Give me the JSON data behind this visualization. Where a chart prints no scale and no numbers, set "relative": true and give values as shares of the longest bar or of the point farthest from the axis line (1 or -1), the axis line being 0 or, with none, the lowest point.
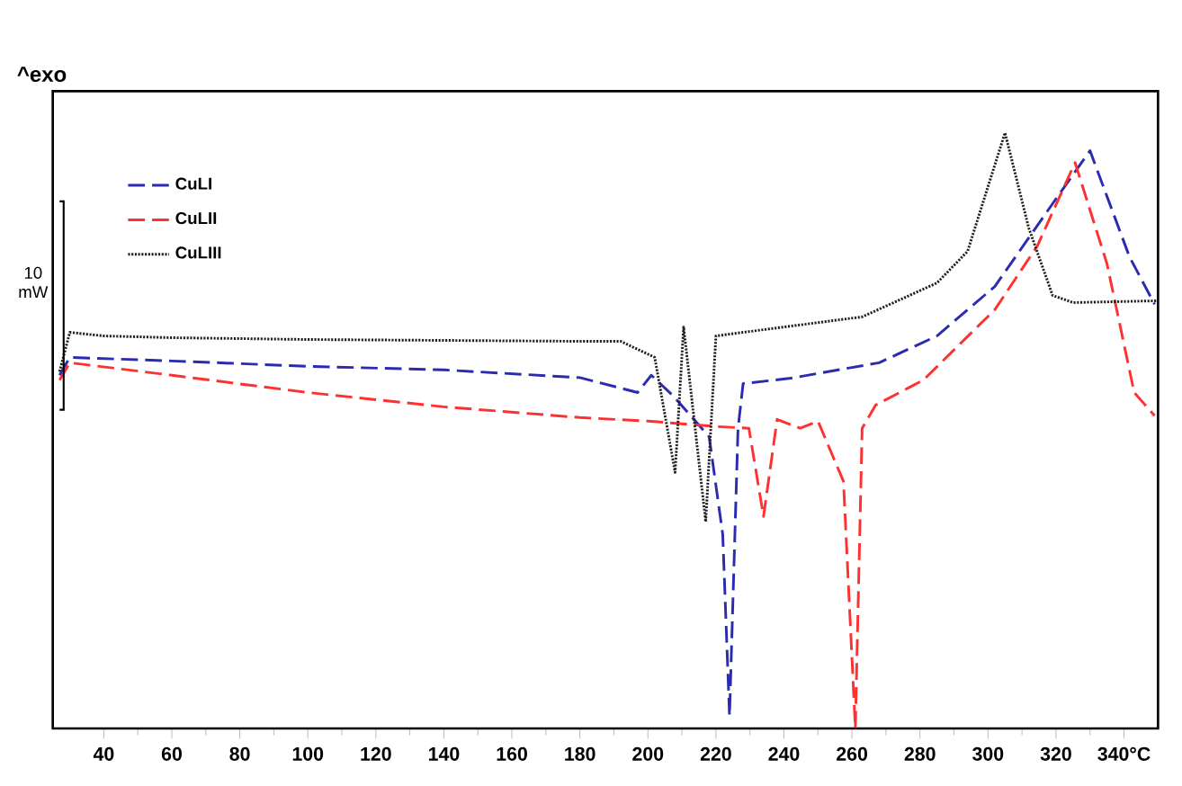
{
  "chart_data": {
    "type": "line",
    "relative": true,
    "legend": "top left",
    "grid": false,
    "marker": "none",
    "annotations": [
      "^exo",
      "10 mW"
    ],
    "xlim": [
      25,
      350
    ],
    "xticks": [
      40,
      60,
      80,
      100,
      120,
      140,
      160,
      180,
      200,
      220,
      240,
      260,
      280,
      300,
      320,
      {
        "value": 340,
        "label": "340°C"
      }
    ],
    "series": [
      {
        "name": "CuLI",
        "color": "#2b2bb0",
        "line_style": "dashed",
        "x": [
          27,
          30,
          60,
          100,
          140,
          180,
          197,
          201,
          207.5,
          218,
          222,
          224,
          226.5,
          228,
          242,
          268,
          285,
          302,
          319,
          330,
          341.6,
          349
        ],
        "values": [
          0.593,
          0.623,
          0.617,
          0.608,
          0.602,
          0.589,
          0.564,
          0.593,
          0.558,
          0.49,
          0.326,
          0.021,
          0.504,
          0.579,
          0.588,
          0.614,
          0.659,
          0.742,
          0.881,
          0.97,
          0.792,
          0.712
        ]
      },
      {
        "name": "CuLII",
        "color": "#ff3030",
        "line_style": "dashed",
        "x": [
          27,
          30,
          60,
          100,
          140,
          180,
          200,
          220,
          229.7,
          234,
          238,
          244.8,
          250,
          257.5,
          261,
          263,
          267,
          281,
          302,
          314.5,
          325.6,
          335,
          343,
          349
        ],
        "values": [
          0.585,
          0.614,
          0.593,
          0.564,
          0.54,
          0.522,
          0.516,
          0.507,
          0.504,
          0.356,
          0.519,
          0.504,
          0.516,
          0.415,
          0,
          0.504,
          0.543,
          0.585,
          0.703,
          0.81,
          0.95,
          0.78,
          0.564,
          0.525
        ]
      },
      {
        "name": "CuLIII",
        "color": "#202020",
        "line_style": "dotted",
        "x": [
          27,
          30,
          40,
          60,
          100,
          180,
          192,
          202,
          208,
          210.5,
          217,
          220,
          240,
          263,
          285,
          294,
          305,
          312,
          319,
          325,
          350
        ],
        "values": [
          0.599,
          0.665,
          0.659,
          0.656,
          0.653,
          0.65,
          0.65,
          0.623,
          0.43,
          0.674,
          0.347,
          0.659,
          0.674,
          0.691,
          0.748,
          0.801,
          1,
          0.84,
          0.727,
          0.715,
          0.718
        ]
      }
    ]
  }
}
